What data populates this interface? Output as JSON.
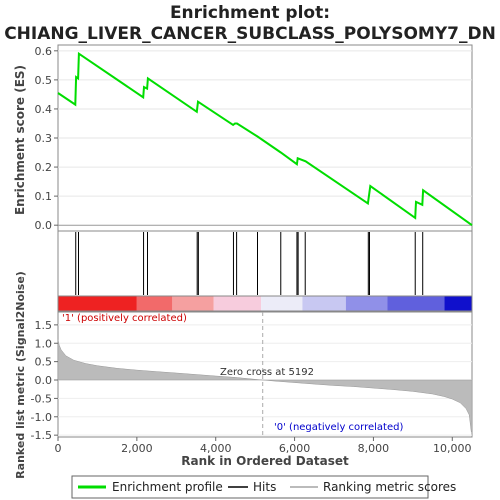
{
  "chart_data": {
    "type": "line",
    "title_line1": "Enrichment plot:",
    "title_line2": "CHIANG_LIVER_CANCER_SUBCLASS_POLYSOMY7_DN",
    "top_panel": {
      "ylabel": "Enrichment score (ES)",
      "ylim": [
        -0.02,
        0.62
      ],
      "yticks": [
        "0.0",
        "0.1",
        "0.2",
        "0.3",
        "0.4",
        "0.5",
        "0.6"
      ],
      "ytick_values": [
        0.0,
        0.1,
        0.2,
        0.3,
        0.4,
        0.5,
        0.6
      ],
      "series_name": "Enrichment profile",
      "series_color": "#00dd00",
      "points": [
        [
          0,
          0.455
        ],
        [
          440,
          0.415
        ],
        [
          460,
          0.51
        ],
        [
          510,
          0.505
        ],
        [
          530,
          0.59
        ],
        [
          2160,
          0.44
        ],
        [
          2180,
          0.475
        ],
        [
          2260,
          0.47
        ],
        [
          2280,
          0.505
        ],
        [
          3520,
          0.39
        ],
        [
          3550,
          0.425
        ],
        [
          4440,
          0.345
        ],
        [
          4490,
          0.35
        ],
        [
          4540,
          0.35
        ],
        [
          5060,
          0.305
        ],
        [
          5650,
          0.25
        ],
        [
          6060,
          0.21
        ],
        [
          6080,
          0.23
        ],
        [
          6280,
          0.22
        ],
        [
          7860,
          0.075
        ],
        [
          7890,
          0.105
        ],
        [
          7920,
          0.135
        ],
        [
          9060,
          0.025
        ],
        [
          9080,
          0.08
        ],
        [
          9240,
          0.07
        ],
        [
          9260,
          0.12
        ],
        [
          10500,
          0.0
        ]
      ]
    },
    "hits": {
      "name": "Hits",
      "positions": [
        450,
        520,
        2170,
        2270,
        3530,
        3560,
        4450,
        4530,
        5060,
        5650,
        6060,
        6090,
        6270,
        7870,
        7900,
        9060,
        9250
      ]
    },
    "colorbar": {
      "segments": [
        {
          "from": 0,
          "to": 2000,
          "color": "#ee2222"
        },
        {
          "from": 2000,
          "to": 2900,
          "color": "#f26a6a"
        },
        {
          "from": 2900,
          "to": 3950,
          "color": "#f5a0a0"
        },
        {
          "from": 3950,
          "to": 5150,
          "color": "#f7ccdd"
        },
        {
          "from": 5150,
          "to": 6200,
          "color": "#ececf8"
        },
        {
          "from": 6200,
          "to": 7300,
          "color": "#c8c8f2"
        },
        {
          "from": 7300,
          "to": 8350,
          "color": "#9090e8"
        },
        {
          "from": 8350,
          "to": 9800,
          "color": "#6060dd"
        },
        {
          "from": 9800,
          "to": 10500,
          "color": "#1010cc"
        }
      ]
    },
    "bottom_panel": {
      "ylabel": "Ranked list metric (Signal2Noise)",
      "xlabel": "Rank in Ordered Dataset",
      "ylim": [
        -1.55,
        1.85
      ],
      "yticks": [
        "-1.5",
        "-1.0",
        "-0.5",
        "0.0",
        "0.5",
        "1.0",
        "1.5"
      ],
      "ytick_values": [
        -1.5,
        -1.0,
        -0.5,
        0.0,
        0.5,
        1.0,
        1.5
      ],
      "xlim": [
        0,
        10500
      ],
      "xticks": [
        "0",
        "2,000",
        "4,000",
        "6,000",
        "8,000",
        "10,000"
      ],
      "xtick_values": [
        0,
        2000,
        4000,
        6000,
        8000,
        10000
      ],
      "metric_curve": [
        [
          0,
          1.1
        ],
        [
          30,
          0.95
        ],
        [
          80,
          0.82
        ],
        [
          200,
          0.66
        ],
        [
          400,
          0.54
        ],
        [
          700,
          0.45
        ],
        [
          1000,
          0.39
        ],
        [
          1500,
          0.32
        ],
        [
          2000,
          0.27
        ],
        [
          2500,
          0.23
        ],
        [
          3000,
          0.19
        ],
        [
          3500,
          0.15
        ],
        [
          4000,
          0.11
        ],
        [
          4500,
          0.07
        ],
        [
          5000,
          0.02
        ],
        [
          5192,
          0.0
        ],
        [
          5500,
          -0.03
        ],
        [
          6000,
          -0.07
        ],
        [
          6500,
          -0.11
        ],
        [
          7000,
          -0.15
        ],
        [
          7500,
          -0.18
        ],
        [
          8000,
          -0.22
        ],
        [
          8500,
          -0.26
        ],
        [
          9000,
          -0.31
        ],
        [
          9500,
          -0.38
        ],
        [
          9800,
          -0.45
        ],
        [
          10000,
          -0.52
        ],
        [
          10200,
          -0.62
        ],
        [
          10350,
          -0.78
        ],
        [
          10430,
          -0.95
        ],
        [
          10480,
          -1.4
        ],
        [
          10500,
          -1.45
        ]
      ],
      "zero_cross_label": "Zero cross at 5192",
      "zero_cross_rank": 5192,
      "positive_label": "'1' (positively correlated)",
      "negative_label": "'0' (negatively correlated)"
    },
    "legend": {
      "placement": "bottom",
      "entries": [
        {
          "label": "Enrichment profile",
          "color": "#00dd00"
        },
        {
          "label": "Hits",
          "color": "#000000"
        },
        {
          "label": "Ranking metric scores",
          "color": "#bbbbbb"
        }
      ]
    }
  }
}
